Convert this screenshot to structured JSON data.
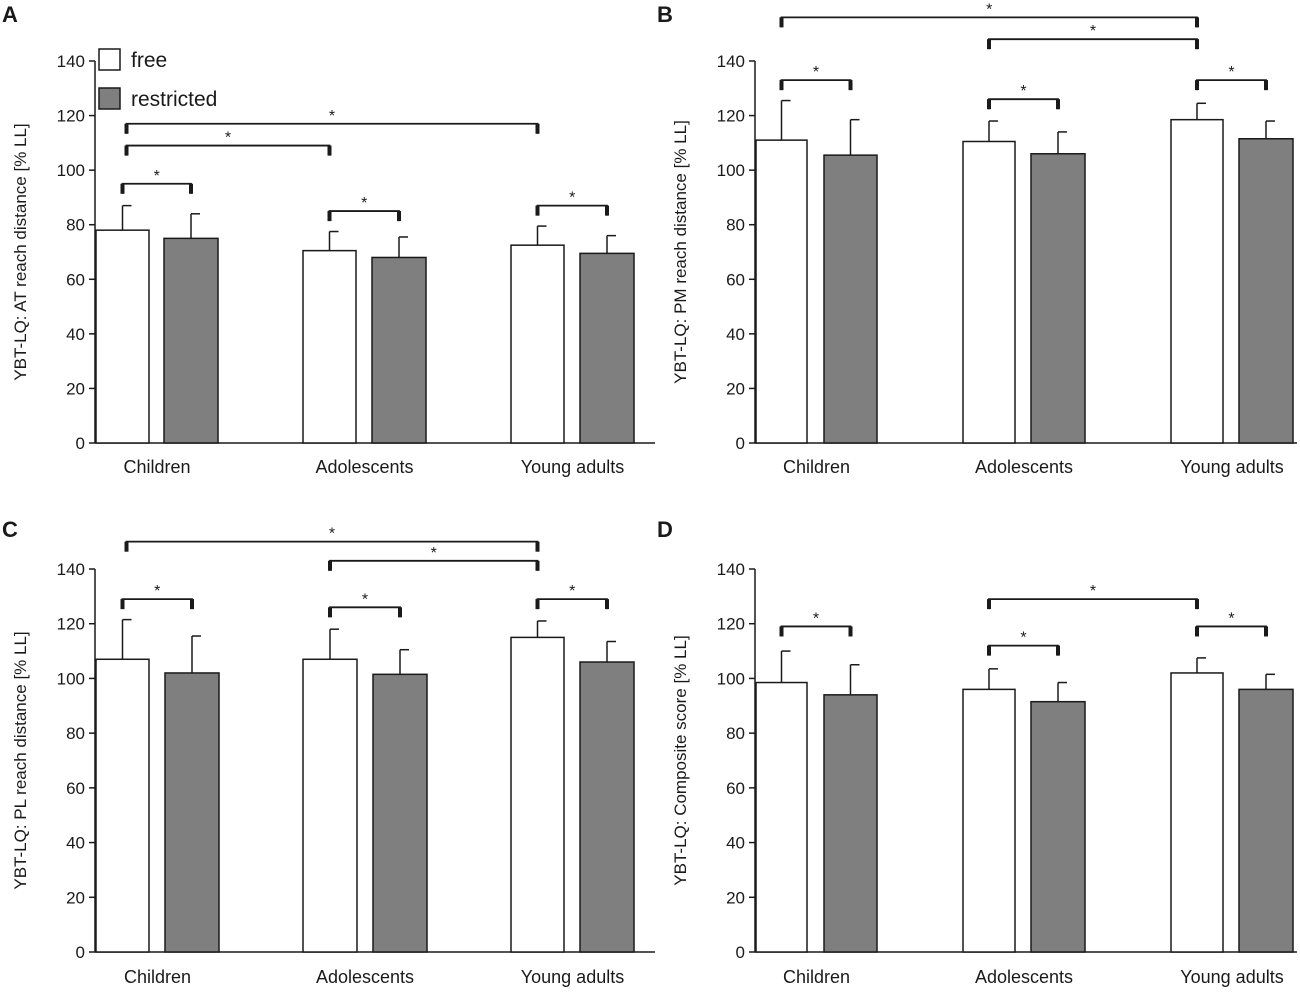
{
  "chart_data": [
    {
      "panel": "A",
      "type": "bar",
      "ylabel": "YBT-LQ: AT reach distance [% LL]",
      "ylim": [
        0,
        140
      ],
      "yticks": [
        0,
        20,
        40,
        60,
        80,
        100,
        120,
        140
      ],
      "categories": [
        "Children",
        "Adolescents",
        "Young adults"
      ],
      "series": [
        {
          "name": "free",
          "color": "#ffffff",
          "values": [
            78,
            70.5,
            72.5
          ],
          "errors": [
            9,
            7,
            7
          ]
        },
        {
          "name": "restricted",
          "color": "#7f7f7f",
          "values": [
            75,
            68,
            69.5
          ],
          "errors": [
            9,
            7.5,
            6.5
          ]
        }
      ],
      "legend": {
        "position": "top-left",
        "entries": [
          "free",
          "restricted"
        ]
      },
      "significance": [
        {
          "from": [
            0,
            0
          ],
          "to": [
            0,
            1
          ],
          "label": "*",
          "y": 95,
          "bar_top": 94
        },
        {
          "from": [
            1,
            0
          ],
          "to": [
            1,
            1
          ],
          "label": "*",
          "y": 85,
          "bar_top": 85
        },
        {
          "from": [
            2,
            0
          ],
          "to": [
            2,
            1
          ],
          "label": "*",
          "y": 87,
          "bar_top": 87
        },
        {
          "from": [
            0,
            "mid"
          ],
          "to": [
            1,
            "mid"
          ],
          "label": "*",
          "y": 109,
          "bar_top": 109
        },
        {
          "from": [
            0,
            "mid"
          ],
          "to": [
            2,
            "mid"
          ],
          "label": "*",
          "y": 117,
          "bar_top": 117
        }
      ]
    },
    {
      "panel": "B",
      "type": "bar",
      "ylabel": "YBT-LQ: PM reach distance [% LL]",
      "ylim": [
        0,
        140
      ],
      "yticks": [
        0,
        20,
        40,
        60,
        80,
        100,
        120,
        140
      ],
      "categories": [
        "Children",
        "Adolescents",
        "Young adults"
      ],
      "series": [
        {
          "name": "free",
          "color": "#ffffff",
          "values": [
            111,
            110.5,
            118.5
          ],
          "errors": [
            14.5,
            7.5,
            6
          ]
        },
        {
          "name": "restricted",
          "color": "#7f7f7f",
          "values": [
            105.5,
            106,
            111.5
          ],
          "errors": [
            13,
            8,
            6.5
          ]
        }
      ],
      "significance": [
        {
          "from": [
            0,
            0
          ],
          "to": [
            0,
            1
          ],
          "label": "*",
          "y": 133
        },
        {
          "from": [
            1,
            0
          ],
          "to": [
            1,
            1
          ],
          "label": "*",
          "y": 126
        },
        {
          "from": [
            2,
            0
          ],
          "to": [
            2,
            1
          ],
          "label": "*",
          "y": 133
        },
        {
          "from": [
            1,
            "mid"
          ],
          "to": [
            2,
            "mid"
          ],
          "label": "*",
          "y": 148
        },
        {
          "from": [
            0,
            "mid"
          ],
          "to": [
            2,
            "mid"
          ],
          "label": "*",
          "y": 156
        }
      ]
    },
    {
      "panel": "C",
      "type": "bar",
      "ylabel": "YBT-LQ: PL reach distance [% LL]",
      "ylim": [
        0,
        140
      ],
      "yticks": [
        0,
        20,
        40,
        60,
        80,
        100,
        120,
        140
      ],
      "categories": [
        "Children",
        "Adolescents",
        "Young adults"
      ],
      "series": [
        {
          "name": "free",
          "color": "#ffffff",
          "values": [
            107,
            107,
            115
          ],
          "errors": [
            14.5,
            11,
            6
          ]
        },
        {
          "name": "restricted",
          "color": "#7f7f7f",
          "values": [
            102,
            101.5,
            106
          ],
          "errors": [
            13.5,
            9,
            7.5
          ]
        }
      ],
      "significance": [
        {
          "from": [
            0,
            0
          ],
          "to": [
            0,
            1
          ],
          "label": "*",
          "y": 129
        },
        {
          "from": [
            1,
            0
          ],
          "to": [
            1,
            1
          ],
          "label": "*",
          "y": 126
        },
        {
          "from": [
            2,
            0
          ],
          "to": [
            2,
            1
          ],
          "label": "*",
          "y": 129
        },
        {
          "from": [
            1,
            "mid"
          ],
          "to": [
            2,
            "mid"
          ],
          "label": "*",
          "y": 143
        },
        {
          "from": [
            0,
            "mid"
          ],
          "to": [
            2,
            "mid"
          ],
          "label": "*",
          "y": 150
        }
      ]
    },
    {
      "panel": "D",
      "type": "bar",
      "ylabel": "YBT-LQ: Composite score [% LL]",
      "ylim": [
        0,
        140
      ],
      "yticks": [
        0,
        20,
        40,
        60,
        80,
        100,
        120,
        140
      ],
      "categories": [
        "Children",
        "Adolescents",
        "Young adults"
      ],
      "series": [
        {
          "name": "free",
          "color": "#ffffff",
          "values": [
            98.5,
            96,
            102
          ],
          "errors": [
            11.5,
            7.5,
            5.5
          ]
        },
        {
          "name": "restricted",
          "color": "#7f7f7f",
          "values": [
            94,
            91.5,
            96
          ],
          "errors": [
            11,
            7,
            5.5
          ]
        }
      ],
      "significance": [
        {
          "from": [
            0,
            0
          ],
          "to": [
            0,
            1
          ],
          "label": "*",
          "y": 119
        },
        {
          "from": [
            1,
            0
          ],
          "to": [
            1,
            1
          ],
          "label": "*",
          "y": 112
        },
        {
          "from": [
            2,
            0
          ],
          "to": [
            2,
            1
          ],
          "label": "*",
          "y": 119
        },
        {
          "from": [
            1,
            "mid"
          ],
          "to": [
            2,
            "mid"
          ],
          "label": "*",
          "y": 129
        }
      ]
    }
  ]
}
